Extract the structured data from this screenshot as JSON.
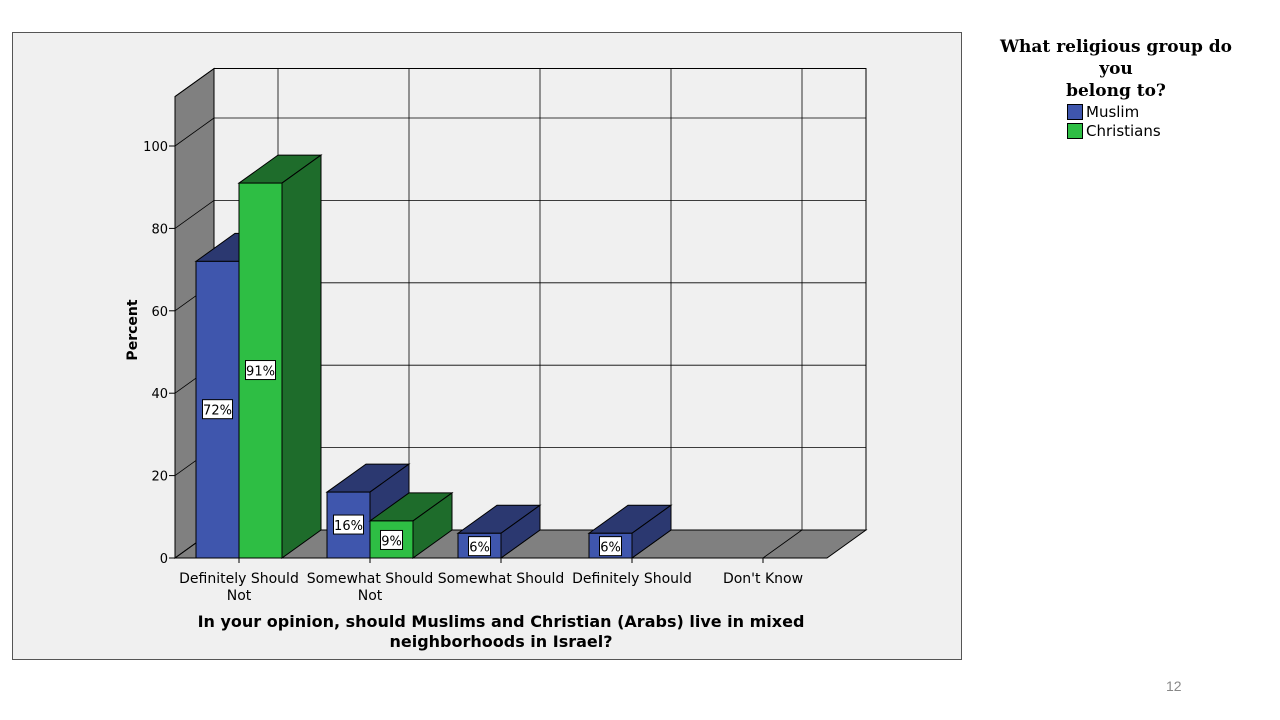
{
  "chart_data": {
    "type": "bar",
    "categories": [
      [
        "Definitely Should",
        "Not"
      ],
      [
        "Somewhat Should",
        "Not"
      ],
      [
        "Somewhat Should"
      ],
      [
        "Definitely Should"
      ],
      [
        "Don't Know"
      ]
    ],
    "series": [
      {
        "name": "Muslim",
        "values": [
          72,
          16,
          6,
          6,
          0
        ],
        "labels": [
          "72%",
          "16%",
          "6%",
          "6%",
          ""
        ]
      },
      {
        "name": "Christians",
        "values": [
          91,
          9,
          0,
          0,
          0
        ],
        "labels": [
          "91%",
          "9%",
          "",
          "",
          ""
        ]
      }
    ],
    "ylabel": "Percent",
    "xlabel": [
      "In your opinion, should Muslims and Christian (Arabs) live in mixed",
      "neighborhoods in Israel?"
    ],
    "yticks": [
      0,
      20,
      40,
      60,
      80,
      100
    ],
    "ylim": [
      0,
      100
    ],
    "grid": true,
    "legend_placement": "top-right",
    "legend_title": [
      "What religious group do you",
      "belong to?"
    ],
    "colors": {
      "Muslim": {
        "front": "#3f56ad",
        "side": "#2b3870",
        "top": "#2b3870"
      },
      "Christians": {
        "front": "#2ebe44",
        "side": "#1e6c2b",
        "top": "#1e6c2b"
      },
      "back_wall": "#f0f0f0",
      "side_wall": "#808080",
      "floor": "#808080"
    }
  },
  "page_number": "12"
}
